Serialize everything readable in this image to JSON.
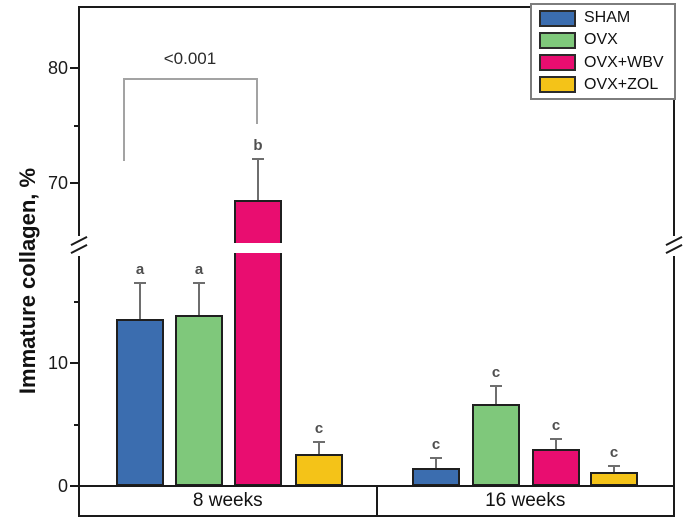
{
  "figure": {
    "ylabel": "Immature collagen, %",
    "categories": [
      "8 weeks",
      "16 weeks"
    ]
  },
  "significance": {
    "label": "<0.001"
  },
  "legend": {
    "items": [
      {
        "label": "SHAM",
        "color": "#3b6daf"
      },
      {
        "label": "OVX",
        "color": "#7fc87b"
      },
      {
        "label": "OVX+WBV",
        "color": "#e90d70"
      },
      {
        "label": "OVX+ZOL",
        "color": "#f4c318"
      }
    ]
  },
  "chart_data": {
    "type": "bar",
    "title": "",
    "xlabel": "",
    "ylabel": "Immature collagen, %",
    "categories": [
      "8 weeks",
      "16 weeks"
    ],
    "y_axis": {
      "ticks_major": [
        0,
        10,
        70,
        80
      ],
      "ticks_minor": [
        5,
        15,
        75
      ],
      "axis_break": {
        "lower_segment_max": 19,
        "upper_segment_min": 65
      },
      "grid": false
    },
    "legend_position": "top-right",
    "series": [
      {
        "name": "SHAM",
        "color": "#3b6daf",
        "values": [
          13.6,
          1.5
        ],
        "errors": [
          2.9,
          0.8
        ],
        "sig_letters": [
          "a",
          "c"
        ]
      },
      {
        "name": "OVX",
        "color": "#7fc87b",
        "values": [
          13.9,
          6.7
        ],
        "errors": [
          2.6,
          1.4
        ],
        "sig_letters": [
          "a",
          "c"
        ]
      },
      {
        "name": "OVX+WBV",
        "color": "#e90d70",
        "values": [
          68.5,
          3.0
        ],
        "errors": [
          3.6,
          0.8
        ],
        "sig_letters": [
          "b",
          "c"
        ]
      },
      {
        "name": "OVX+ZOL",
        "color": "#f4c318",
        "values": [
          2.6,
          1.1
        ],
        "errors": [
          1.0,
          0.5
        ],
        "sig_letters": [
          "c",
          "c"
        ]
      }
    ],
    "annotations": [
      {
        "type": "significance_bracket",
        "label": "<0.001",
        "between": [
          "SHAM @ 8 weeks",
          "OVX+WBV @ 8 weeks"
        ]
      }
    ]
  }
}
